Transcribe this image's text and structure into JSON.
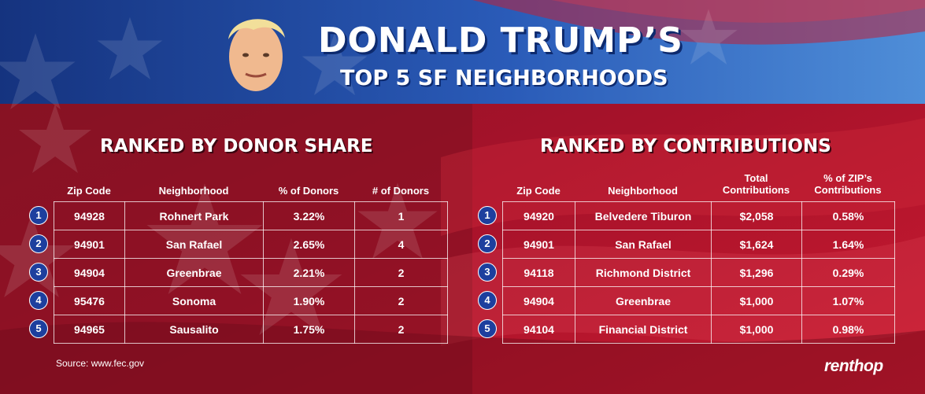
{
  "header": {
    "title": "DONALD TRUMP’S",
    "subtitle": "TOP 5 SF NEIGHBORHOODS",
    "portrait_icon": "trump-portrait"
  },
  "colors": {
    "flag_blue": "#1d3f9e",
    "flag_red": "#b3142b",
    "dark_red": "#7a0c1a",
    "text": "#ffffff"
  },
  "donor_share": {
    "title": "RANKED BY DONOR SHARE",
    "columns": [
      "Zip Code",
      "Neighborhood",
      "% of Donors",
      "# of Donors"
    ],
    "rows": [
      {
        "rank": "1",
        "zip": "94928",
        "neighborhood": "Rohnert Park",
        "pct": "3.22%",
        "count": "1"
      },
      {
        "rank": "2",
        "zip": "94901",
        "neighborhood": "San Rafael",
        "pct": "2.65%",
        "count": "4"
      },
      {
        "rank": "3",
        "zip": "94904",
        "neighborhood": "Greenbrae",
        "pct": "2.21%",
        "count": "2"
      },
      {
        "rank": "4",
        "zip": "95476",
        "neighborhood": "Sonoma",
        "pct": "1.90%",
        "count": "2"
      },
      {
        "rank": "5",
        "zip": "94965",
        "neighborhood": "Sausalito",
        "pct": "1.75%",
        "count": "2"
      }
    ]
  },
  "contributions": {
    "title": "RANKED BY CONTRIBUTIONS",
    "columns": [
      "Zip Code",
      "Neighborhood",
      "Total Contributions",
      "% of ZIP’s Contributions"
    ],
    "rows": [
      {
        "rank": "1",
        "zip": "94920",
        "neighborhood": "Belvedere Tiburon",
        "total": "$2,058",
        "pct": "0.58%"
      },
      {
        "rank": "2",
        "zip": "94901",
        "neighborhood": "San Rafael",
        "total": "$1,624",
        "pct": "1.64%"
      },
      {
        "rank": "3",
        "zip": "94118",
        "neighborhood": "Richmond District",
        "total": "$1,296",
        "pct": "0.29%"
      },
      {
        "rank": "4",
        "zip": "94904",
        "neighborhood": "Greenbrae",
        "total": "$1,000",
        "pct": "1.07%"
      },
      {
        "rank": "5",
        "zip": "94104",
        "neighborhood": "Financial District",
        "total": "$1,000",
        "pct": "0.98%"
      }
    ]
  },
  "footer": {
    "source": "Source: www.fec.gov",
    "logo": "renthop"
  }
}
